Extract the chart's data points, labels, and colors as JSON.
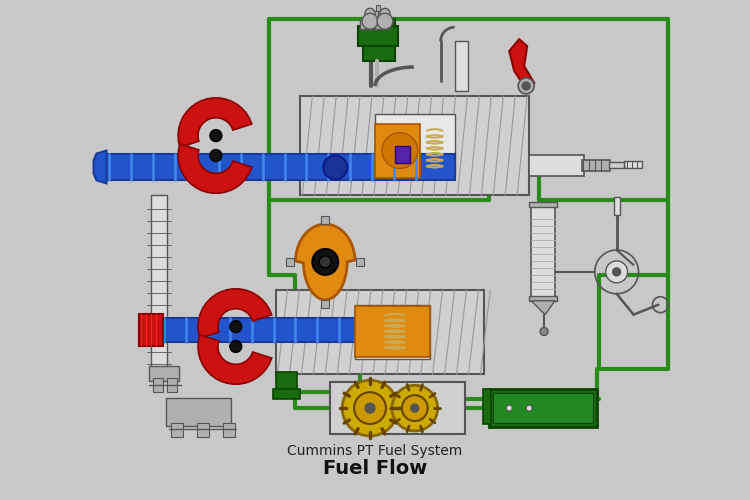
{
  "bg_color": "#c8c8c8",
  "title1": "Cummins PT Fuel System",
  "title2": "Fuel Flow",
  "title1_size": 10,
  "title2_size": 14,
  "green": "#2a8a1a",
  "green_lw": 3.0,
  "blue": "#2255cc",
  "red": "#cc1111",
  "orange": "#e08a10",
  "dark_gray": "#555555",
  "mid_gray": "#888888",
  "light_gray": "#cccccc",
  "silver": "#b0b0b0",
  "hatch_gray": "#aaaaaa",
  "dark_green": "#1a6b10",
  "gold": "#ccaa00",
  "purple": "#5522aa",
  "white_gray": "#dddddd",
  "pump_gray": "#c8c8c8",
  "blue_dark": "#1a3a99"
}
